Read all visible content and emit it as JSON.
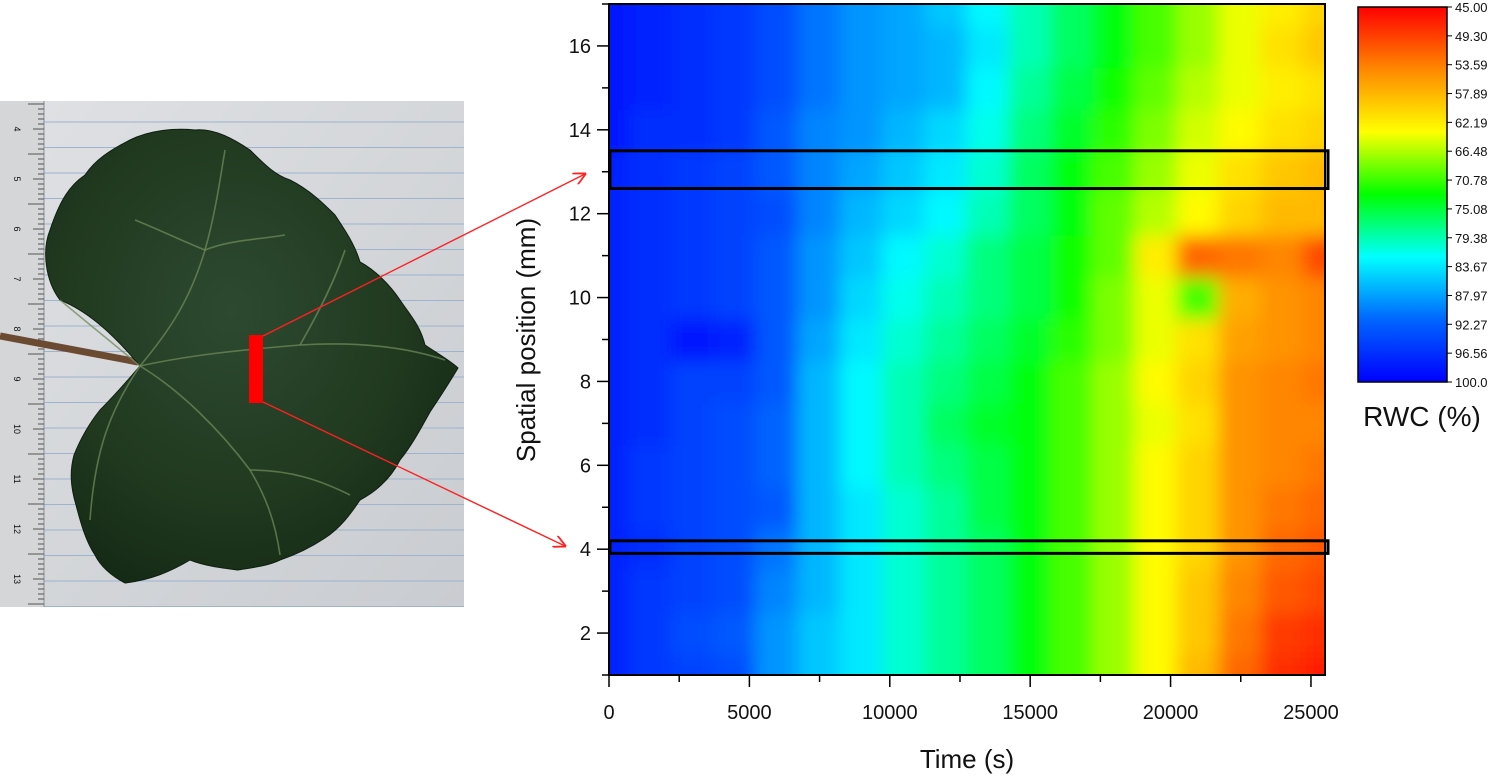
{
  "figure": {
    "photo": {
      "subject": "grape leaf on lined paper beside a ruler",
      "ruler_labels": [
        "4",
        "5",
        "6",
        "7",
        "8",
        "9",
        "10",
        "11",
        "12",
        "13"
      ],
      "marker_color": "#ff0000",
      "connector_color": "#ff2020"
    }
  },
  "chart_data": {
    "type": "heatmap",
    "title": "",
    "xlabel": "Time (s)",
    "ylabel": "Spatial position (mm)",
    "xlim": [
      0,
      25500
    ],
    "ylim": [
      1,
      17
    ],
    "x_ticks": [
      0,
      5000,
      10000,
      15000,
      20000,
      25000
    ],
    "y_ticks": [
      2,
      4,
      6,
      8,
      10,
      12,
      14,
      16
    ],
    "x": [
      0,
      1500,
      3000,
      4500,
      6000,
      7500,
      9000,
      10500,
      12000,
      13500,
      15000,
      16500,
      18000,
      19500,
      21000,
      22500,
      24000,
      25500
    ],
    "y": [
      1,
      2,
      3,
      4,
      5,
      6,
      7,
      8,
      9,
      10,
      11,
      12,
      13,
      14,
      15,
      16,
      17
    ],
    "z": [
      [
        97,
        95,
        94,
        93,
        88,
        85,
        83,
        80,
        78,
        76,
        73,
        70,
        67,
        63,
        58,
        52,
        48,
        47
      ],
      [
        97,
        95,
        93,
        92,
        88,
        85,
        83,
        80,
        78,
        76,
        73,
        70,
        67,
        63,
        59,
        53,
        49,
        48
      ],
      [
        97,
        95,
        94,
        93,
        89,
        86,
        83,
        80,
        78,
        76,
        73,
        70,
        67,
        63,
        59,
        54,
        51,
        50
      ],
      [
        97,
        96,
        94,
        93,
        90,
        86,
        83,
        80,
        78,
        76,
        73,
        70,
        67,
        63,
        60,
        55,
        52,
        51
      ],
      [
        97,
        95,
        94,
        93,
        92,
        86,
        83,
        80,
        78,
        75,
        73,
        70,
        67,
        63,
        60,
        55,
        53,
        52
      ],
      [
        97,
        95,
        94,
        93,
        91,
        86,
        82,
        79,
        77,
        75,
        73,
        70,
        67,
        63,
        60,
        55,
        54,
        53
      ],
      [
        97,
        96,
        94,
        93,
        91,
        86,
        82,
        79,
        76,
        74,
        73,
        70,
        67,
        64,
        61,
        55,
        54,
        54
      ],
      [
        97,
        96,
        94,
        94,
        92,
        86,
        82,
        79,
        77,
        75,
        73,
        70,
        67,
        63,
        60,
        55,
        54,
        53
      ],
      [
        97,
        96,
        98,
        97,
        92,
        87,
        83,
        80,
        78,
        76,
        74,
        71,
        68,
        64,
        61,
        56,
        55,
        54
      ],
      [
        97,
        96,
        95,
        94,
        92,
        88,
        84,
        81,
        79,
        77,
        75,
        72,
        68,
        64,
        70,
        57,
        55,
        54
      ],
      [
        97,
        96,
        95,
        94,
        92,
        88,
        85,
        82,
        80,
        77,
        75,
        72,
        69,
        62,
        52,
        53,
        54,
        50
      ],
      [
        97,
        96,
        95,
        94,
        93,
        89,
        86,
        84,
        82,
        79,
        76,
        73,
        69,
        66,
        63,
        60,
        58,
        58
      ],
      [
        97,
        96,
        95,
        94,
        92,
        89,
        87,
        85,
        83,
        80,
        76,
        73,
        70,
        67,
        64,
        61,
        59,
        58
      ],
      [
        98,
        96,
        96,
        95,
        92,
        89,
        88,
        86,
        84,
        81,
        77,
        74,
        71,
        68,
        65,
        63,
        61,
        60
      ],
      [
        98,
        97,
        96,
        95,
        93,
        90,
        88,
        87,
        86,
        82,
        78,
        75,
        72,
        69,
        66,
        64,
        62,
        61
      ],
      [
        98,
        97,
        96,
        95,
        93,
        90,
        88,
        87,
        86,
        83,
        79,
        76,
        73,
        70,
        67,
        64,
        61,
        59
      ],
      [
        98,
        97,
        96,
        95,
        93,
        90,
        88,
        87,
        85,
        82,
        79,
        76,
        73,
        70,
        67,
        64,
        62,
        60
      ]
    ],
    "highlight_bands": [
      {
        "y_from": 12.6,
        "y_to": 13.5
      },
      {
        "y_from": 3.9,
        "y_to": 4.2
      }
    ],
    "colorbar": {
      "title": "RWC (%)",
      "tick_labels": [
        "45.00",
        "49.30",
        "53.59",
        "57.89",
        "62.19",
        "66.48",
        "70.78",
        "75.08",
        "79.38",
        "83.67",
        "87.97",
        "92.27",
        "96.56",
        "100.0"
      ],
      "value_top": 45,
      "value_bottom": 100,
      "colors_top_to_bottom": [
        "#ff0000",
        "#ff8800",
        "#ffff00",
        "#00ff00",
        "#00ffff",
        "#0066ff",
        "#0000ff"
      ]
    },
    "grid": false,
    "legend": "right"
  }
}
